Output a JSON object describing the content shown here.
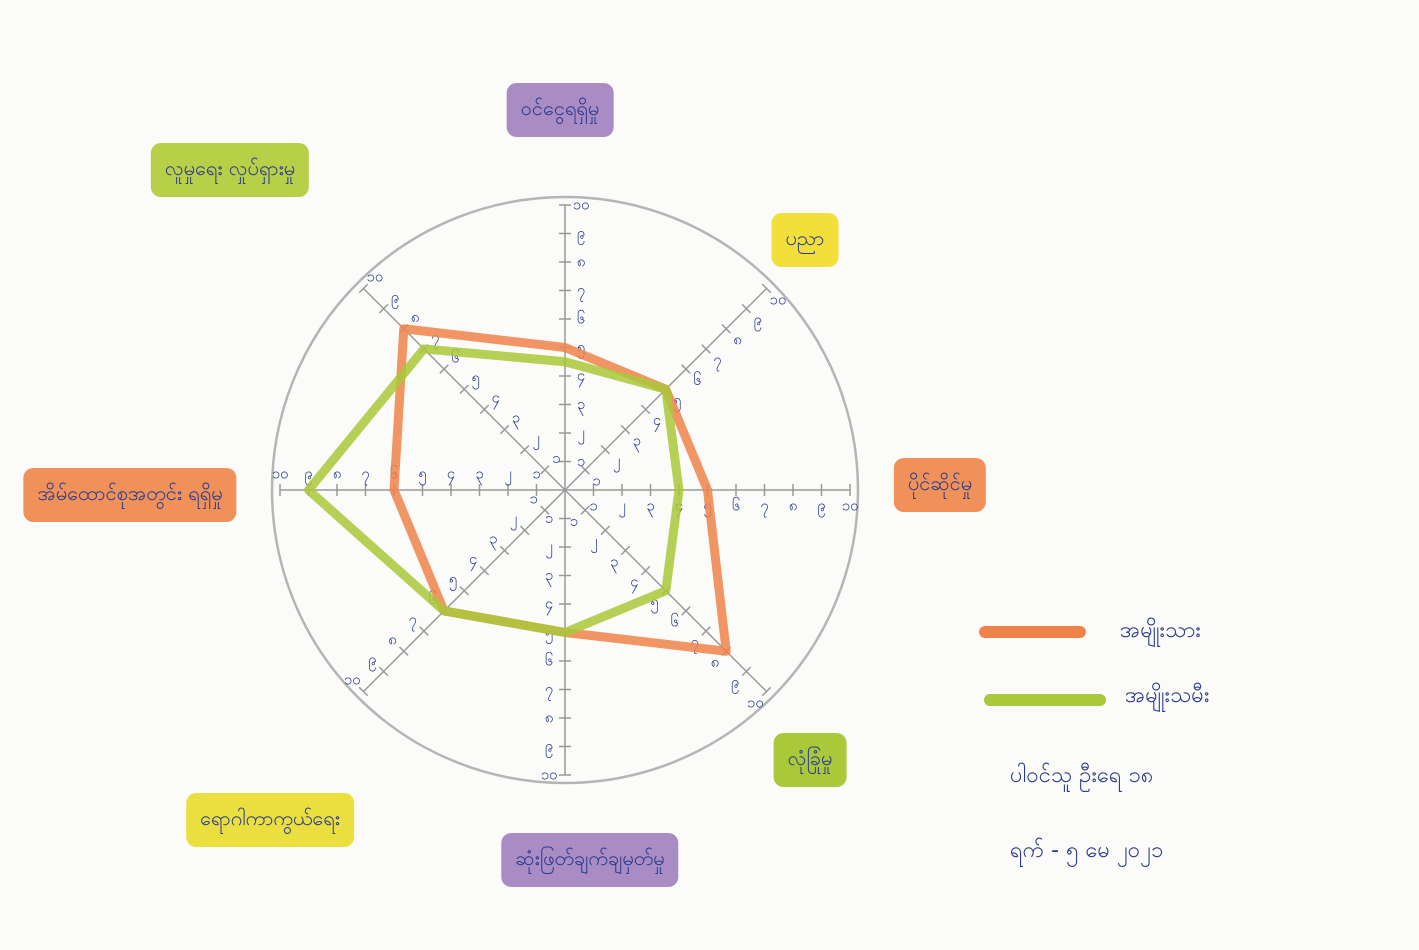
{
  "chart_data": {
    "type": "radar",
    "axes": [
      "ဝင်ငွေရရှိမှု",
      "ပညာ",
      "ပိုင်ဆိုင်မှု",
      "လုံခြုံမှု",
      "ဆုံးဖြတ်ချက်ချမှတ်မှု",
      "ရောဂါကာကွယ်ရေး",
      "အိမ်ထောင်စုအတွင်း ရရှိမှု",
      "လူမှုရေး လှုပ်ရှားမှု"
    ],
    "series": [
      {
        "name": "အမျိုးသား",
        "color": "#f0834a",
        "values": [
          5,
          5,
          5,
          8,
          5,
          6,
          6,
          8
        ]
      },
      {
        "name": "အမျိုးသမီး",
        "color": "#a9c83a",
        "values": [
          4.5,
          5,
          4,
          5,
          5,
          6,
          9,
          7
        ]
      }
    ],
    "rlim": [
      0,
      10
    ],
    "rticks": [
      {
        "value": 1,
        "label": "၁"
      },
      {
        "value": 2,
        "label": "၂"
      },
      {
        "value": 3,
        "label": "၃"
      },
      {
        "value": 4,
        "label": "၄"
      },
      {
        "value": 5,
        "label": "၅"
      },
      {
        "value": 6,
        "label": "၆"
      },
      {
        "value": 7,
        "label": "၇"
      },
      {
        "value": 8,
        "label": "၈"
      },
      {
        "value": 9,
        "label": "၉"
      },
      {
        "value": 10,
        "label": "၁၀"
      }
    ],
    "notes": [
      "ပါဝင်သူ ဦးရေ ၁၈",
      "ရက် - ၅ မေ ၂၀၂၁"
    ]
  }
}
